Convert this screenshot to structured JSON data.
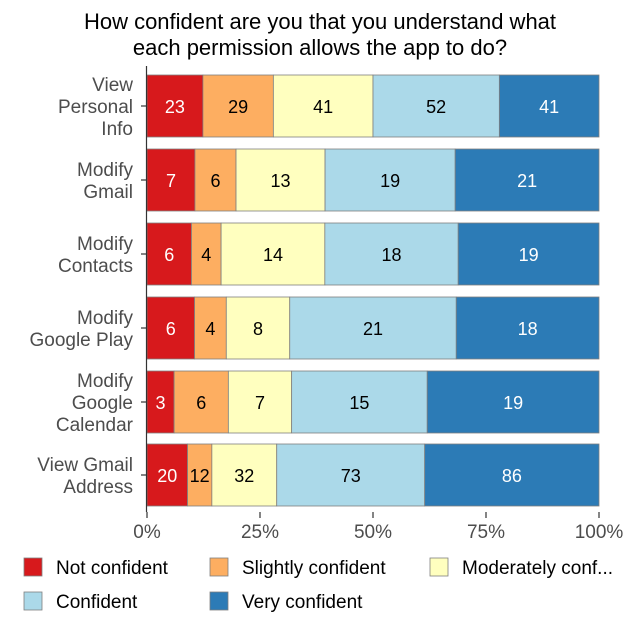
{
  "chart_data": {
    "type": "bar",
    "orientation": "horizontal",
    "stacked": true,
    "normalized": true,
    "title": [
      "How confident are you that you understand what",
      "each permission allows the app to do?"
    ],
    "categories": [
      [
        "View",
        "Personal",
        "Info"
      ],
      [
        "Modify",
        "Gmail"
      ],
      [
        "Modify",
        "Contacts"
      ],
      [
        "Modify",
        "Google Play"
      ],
      [
        "Modify",
        "Google",
        "Calendar"
      ],
      [
        "View Gmail",
        "Address"
      ]
    ],
    "series": [
      {
        "name": "Not confident",
        "color": "#d7191c",
        "label_color": "#ffffff",
        "values": [
          23,
          7,
          6,
          6,
          3,
          20
        ]
      },
      {
        "name": "Slightly confident",
        "color": "#fdae61",
        "label_color": "#000000",
        "values": [
          29,
          6,
          4,
          4,
          6,
          12
        ]
      },
      {
        "name": "Moderately conf...",
        "color": "#ffffbf",
        "label_color": "#000000",
        "values": [
          41,
          13,
          14,
          8,
          7,
          32
        ]
      },
      {
        "name": "Confident",
        "color": "#abd9e9",
        "label_color": "#000000",
        "values": [
          52,
          19,
          18,
          21,
          15,
          73
        ]
      },
      {
        "name": "Very confident",
        "color": "#2c7bb6",
        "label_color": "#ffffff",
        "values": [
          41,
          21,
          19,
          18,
          19,
          86
        ]
      }
    ],
    "x_ticks": [
      "0%",
      "25%",
      "50%",
      "75%",
      "100%"
    ],
    "xlim": [
      0,
      100
    ],
    "legend_position": "bottom",
    "grid": false
  }
}
